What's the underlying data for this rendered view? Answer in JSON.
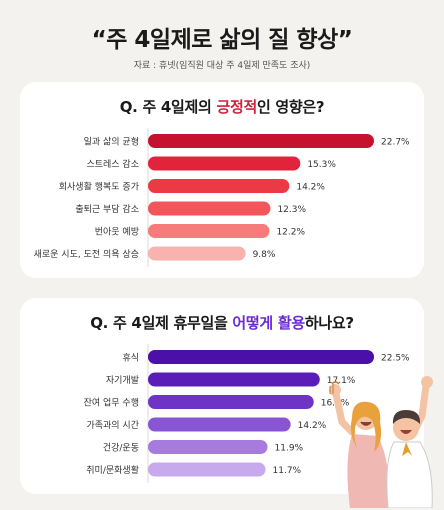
{
  "header": {
    "title": "“주 4일제로 삶의 질 향상”",
    "source": "자료 : 휴넷(임직원 대상 주 4일제 만족도 조사)"
  },
  "chart_data": [
    {
      "type": "bar",
      "orientation": "horizontal",
      "title_parts": [
        "Q. 주 4일제의 ",
        "긍정적",
        "인 영향은?"
      ],
      "categories": [
        "일과 삶의 균형",
        "스트레스 감소",
        "회사생활 행복도 증가",
        "출퇴근 부담 감소",
        "번아웃 예방",
        "새로운 시도, 도전 의욕 상승"
      ],
      "values": [
        22.7,
        15.3,
        14.2,
        12.3,
        12.2,
        9.8
      ],
      "value_labels": [
        "22.7%",
        "15.3%",
        "14.2%",
        "12.3%",
        "12.2%",
        "9.8%"
      ],
      "colors": [
        "#c4122f",
        "#e2233c",
        "#ec3a44",
        "#f3555a",
        "#f77b7b",
        "#f9b3ae"
      ],
      "xlim": [
        0,
        22.7
      ]
    },
    {
      "type": "bar",
      "orientation": "horizontal",
      "title_parts": [
        "Q. 주 4일제 휴무일을 ",
        "어떻게 활용",
        "하나요?"
      ],
      "categories": [
        "휴식",
        "자기개발",
        "잔여 업무 수행",
        "가족과의 시간",
        "건강/운동",
        "취미/문화생활"
      ],
      "values": [
        22.5,
        17.1,
        16.5,
        14.2,
        11.9,
        11.7
      ],
      "value_labels": [
        "22.5%",
        "17.1%",
        "16.5%",
        "14.2%",
        "11.9%",
        "11.7%"
      ],
      "colors": [
        "#4a10a8",
        "#5a1db8",
        "#6f34c6",
        "#8a55d3",
        "#a77ade",
        "#c9a9ee"
      ],
      "xlim": [
        0,
        22.5
      ]
    }
  ]
}
